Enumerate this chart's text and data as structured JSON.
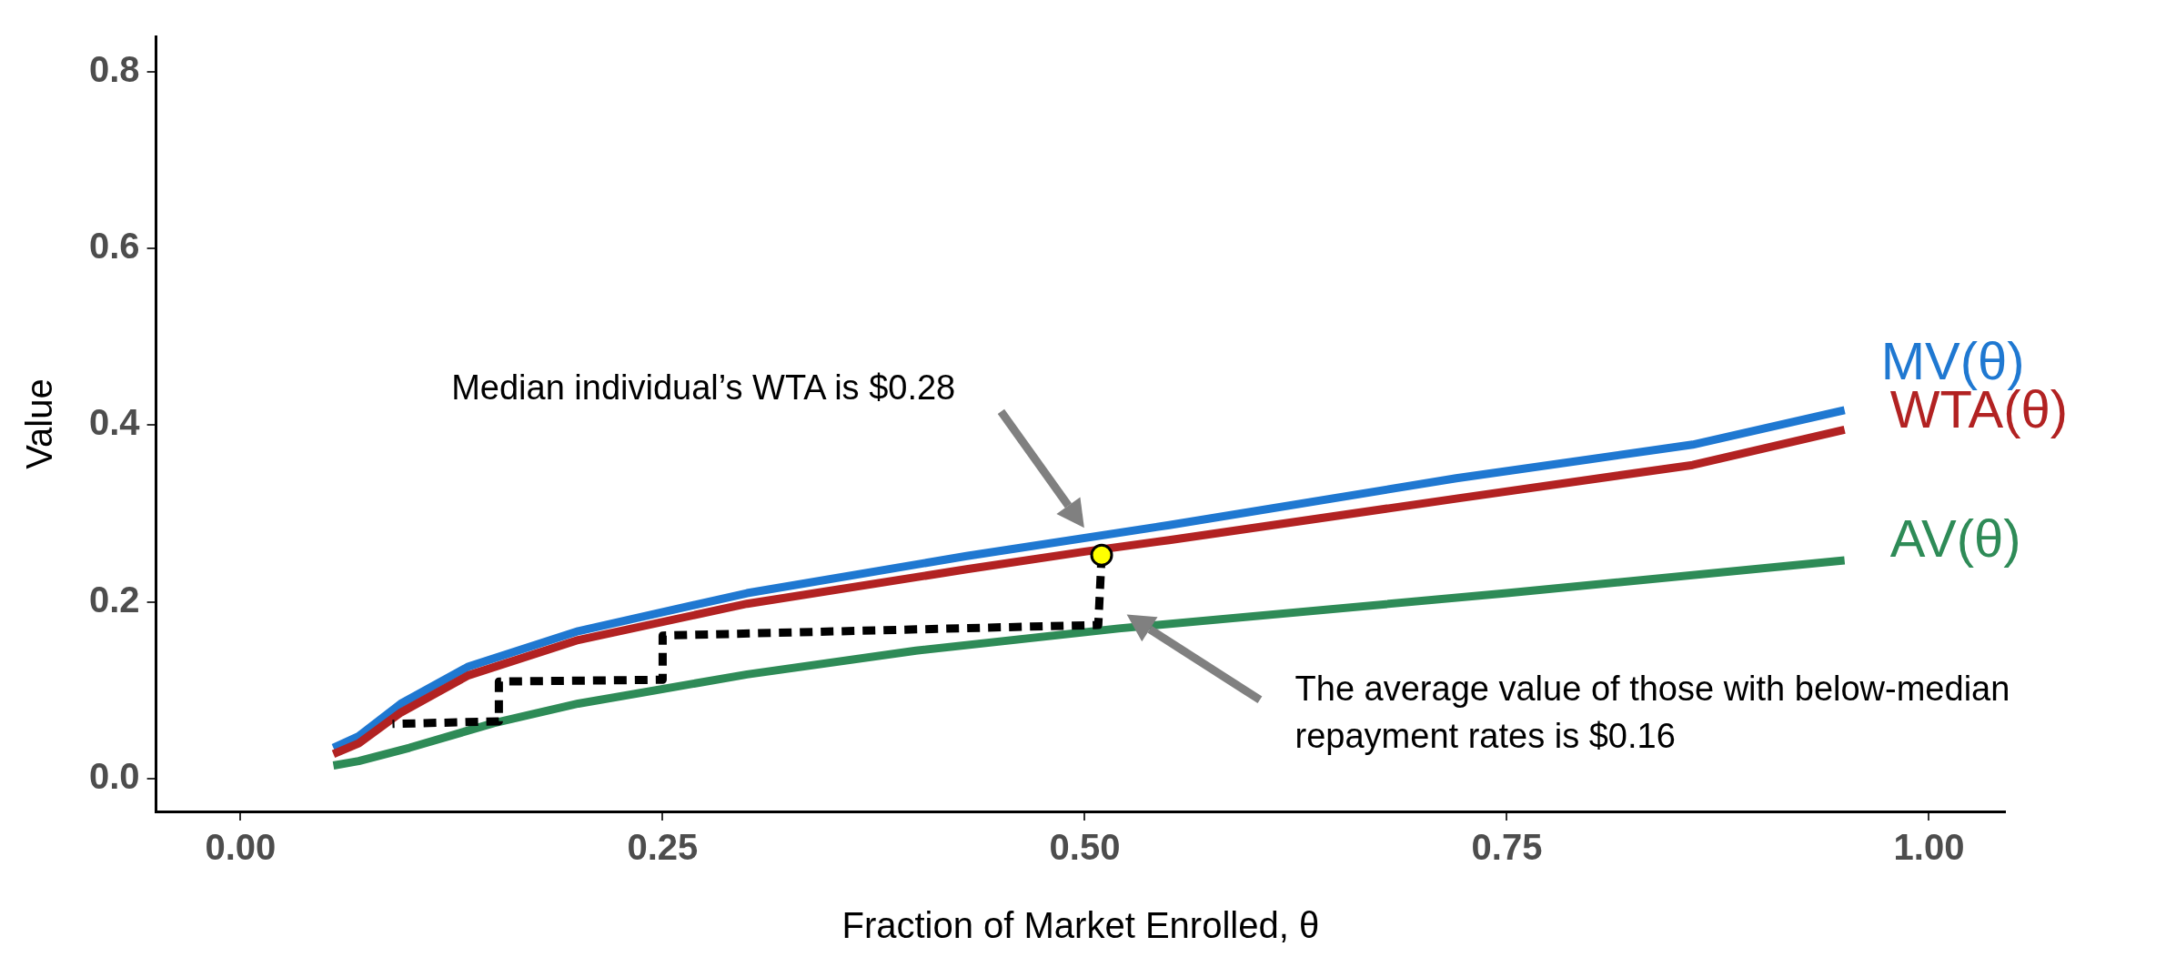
{
  "chart_data": {
    "type": "line",
    "xlabel": "Fraction of Market Enrolled, θ",
    "ylabel": "Value",
    "xlim": [
      -0.05,
      1.045
    ],
    "ylim": [
      -0.037,
      0.84
    ],
    "xticks": [
      {
        "value": 0,
        "label": "0.00"
      },
      0.25,
      {
        "value": 0.5,
        "label": "0.50"
      },
      0.75,
      {
        "value": 1,
        "label": "1.00"
      }
    ],
    "yticks": [
      {
        "value": 0,
        "label": "0.0"
      },
      0.2,
      0.4,
      0.6,
      0.8
    ],
    "grid": false,
    "legend": false,
    "marker": "none",
    "series": [
      {
        "name": "MV(θ)",
        "type": "line",
        "color": "#1f78d1",
        "x": [
          0.055,
          0.07,
          0.095,
          0.135,
          0.2,
          0.3,
          0.43,
          0.55,
          0.72,
          0.86,
          0.95
        ],
        "values": [
          0.035,
          0.048,
          0.085,
          0.127,
          0.167,
          0.21,
          0.252,
          0.287,
          0.34,
          0.378,
          0.417
        ]
      },
      {
        "name": "WTA(θ)",
        "type": "line",
        "color": "#b22222",
        "x": [
          0.055,
          0.07,
          0.095,
          0.135,
          0.2,
          0.3,
          0.43,
          0.5,
          0.55,
          0.72,
          0.86,
          0.95
        ],
        "values": [
          0.028,
          0.04,
          0.075,
          0.117,
          0.157,
          0.198,
          0.237,
          0.257,
          0.27,
          0.317,
          0.355,
          0.395
        ]
      },
      {
        "name": "AV(θ)",
        "type": "line",
        "color": "#2e8b57",
        "x": [
          0.055,
          0.07,
          0.1,
          0.15,
          0.2,
          0.3,
          0.4,
          0.52,
          0.75,
          0.95
        ],
        "values": [
          0.015,
          0.02,
          0.035,
          0.063,
          0.085,
          0.118,
          0.145,
          0.17,
          0.21,
          0.247
        ]
      },
      {
        "type": "line",
        "color": "#000000",
        "line_style": "dashed",
        "x": [
          0.51,
          0.508,
          0.25,
          0.25,
          0.153,
          0.153,
          0.09
        ],
        "values": [
          0.253,
          0.174,
          0.162,
          0.112,
          0.11,
          0.065,
          0.062
        ]
      },
      {
        "type": "scatter",
        "color": "#ffff00",
        "marker": "circle",
        "x": [
          0.51
        ],
        "values": [
          0.253
        ]
      }
    ],
    "annotations": [
      "Median individual’s WTA is $0.28",
      "The average value of those with below-median repayment rates is $0.16"
    ]
  }
}
